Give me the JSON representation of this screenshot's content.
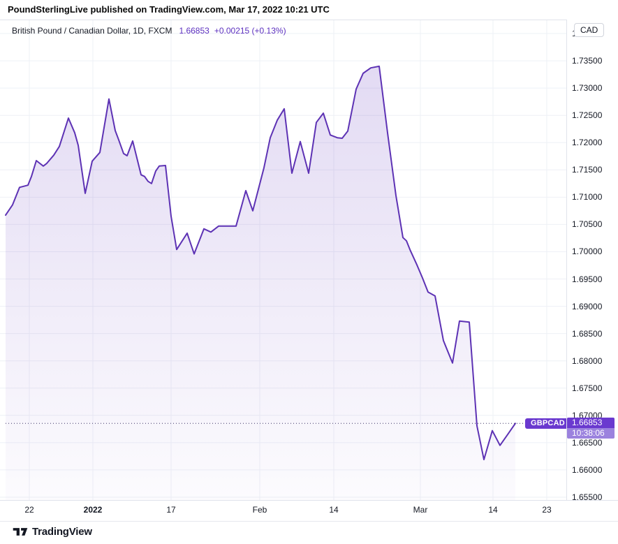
{
  "header": {
    "text": "PoundSterlingLive published on TradingView.com, Mar 17, 2022 10:21 UTC"
  },
  "legend": {
    "title": "British Pound / Canadian Dollar, 1D, FXCM",
    "price": "1.66853",
    "change": "+0.00215 (+0.13%)"
  },
  "price_axis": {
    "currency_label": "CAD",
    "last_price_text": "1.66853",
    "countdown": "10:38:06"
  },
  "marker": {
    "symbol": "GBPCAD"
  },
  "footer": {
    "brand": "TradingView"
  },
  "colors": {
    "line": "#5d32b4",
    "fill_top": "rgba(99,54,190,0.18)",
    "fill_bottom": "rgba(99,54,190,0.02)",
    "label_bg": "#6a39cf",
    "countdown_bg": "#9b82de",
    "grid": "#eef0f6",
    "axis_text": "#131722",
    "quote_text": "#5b2fbf",
    "dotted_line": "#3b3366"
  },
  "chart_data": {
    "type": "area",
    "title": "British Pound / Canadian Dollar, 1D, FXCM",
    "exchange": "FXCM",
    "interval": "1D",
    "last_price": 1.66853,
    "change_abs": 0.00215,
    "change_pct": 0.13,
    "ylim": [
      1.655,
      1.74
    ],
    "grid": true,
    "legend_position": "top-left",
    "y_ticks": [
      1.74,
      1.735,
      1.73,
      1.725,
      1.72,
      1.715,
      1.71,
      1.705,
      1.7,
      1.695,
      1.69,
      1.685,
      1.68,
      1.675,
      1.67,
      1.665,
      1.66,
      1.655
    ],
    "x_ticks": [
      {
        "label": "22",
        "px": 42
      },
      {
        "label": "2022",
        "px": 133,
        "bold": true
      },
      {
        "label": "17",
        "px": 245
      },
      {
        "label": "Feb",
        "px": 372
      },
      {
        "label": "14",
        "px": 478
      },
      {
        "label": "Mar",
        "px": 602
      },
      {
        "label": "14",
        "px": 706
      },
      {
        "label": "23",
        "px": 783
      }
    ],
    "series": [
      {
        "name": "GBPCAD",
        "points": [
          [
            8,
            1.7067
          ],
          [
            18,
            1.7086
          ],
          [
            28,
            1.7118
          ],
          [
            40,
            1.7122
          ],
          [
            45,
            1.7138
          ],
          [
            52,
            1.7167
          ],
          [
            62,
            1.7157
          ],
          [
            67,
            1.7162
          ],
          [
            77,
            1.7177
          ],
          [
            85,
            1.7193
          ],
          [
            98,
            1.7245
          ],
          [
            107,
            1.7218
          ],
          [
            112,
            1.7195
          ],
          [
            122,
            1.7107
          ],
          [
            132,
            1.7166
          ],
          [
            143,
            1.7182
          ],
          [
            156,
            1.728
          ],
          [
            165,
            1.7222
          ],
          [
            170,
            1.7205
          ],
          [
            177,
            1.718
          ],
          [
            182,
            1.7176
          ],
          [
            190,
            1.7203
          ],
          [
            202,
            1.7141
          ],
          [
            207,
            1.7138
          ],
          [
            212,
            1.7129
          ],
          [
            217,
            1.7125
          ],
          [
            223,
            1.7148
          ],
          [
            228,
            1.7157
          ],
          [
            237,
            1.7158
          ],
          [
            245,
            1.7065
          ],
          [
            253,
            1.7004
          ],
          [
            268,
            1.7034
          ],
          [
            278,
            1.6996
          ],
          [
            292,
            1.7042
          ],
          [
            302,
            1.7036
          ],
          [
            313,
            1.7047
          ],
          [
            338,
            1.7047
          ],
          [
            352,
            1.7112
          ],
          [
            362,
            1.7075
          ],
          [
            378,
            1.7154
          ],
          [
            387,
            1.7209
          ],
          [
            397,
            1.7241
          ],
          [
            407,
            1.7262
          ],
          [
            418,
            1.7144
          ],
          [
            430,
            1.7202
          ],
          [
            442,
            1.7144
          ],
          [
            453,
            1.7237
          ],
          [
            463,
            1.7254
          ],
          [
            473,
            1.7214
          ],
          [
            483,
            1.7209
          ],
          [
            490,
            1.7208
          ],
          [
            498,
            1.7221
          ],
          [
            510,
            1.7298
          ],
          [
            520,
            1.7327
          ],
          [
            531,
            1.7337
          ],
          [
            543,
            1.734
          ],
          [
            555,
            1.7218
          ],
          [
            567,
            1.7103
          ],
          [
            577,
            1.7026
          ],
          [
            582,
            1.702
          ],
          [
            587,
            1.7004
          ],
          [
            597,
            1.6976
          ],
          [
            605,
            1.6952
          ],
          [
            613,
            1.6926
          ],
          [
            623,
            1.6919
          ],
          [
            635,
            1.6837
          ],
          [
            648,
            1.6796
          ],
          [
            658,
            1.6873
          ],
          [
            672,
            1.6871
          ],
          [
            683,
            1.6681
          ],
          [
            693,
            1.6619
          ],
          [
            705,
            1.6672
          ],
          [
            716,
            1.6645
          ],
          [
            727,
            1.6665
          ],
          [
            738,
            1.66853
          ]
        ]
      }
    ]
  }
}
